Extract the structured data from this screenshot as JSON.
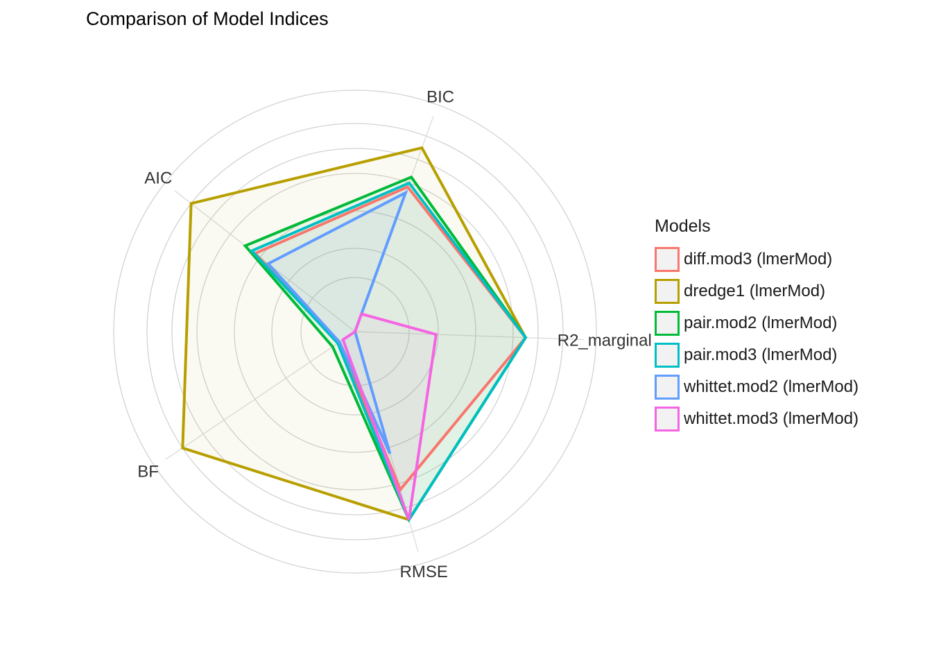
{
  "chart_data": {
    "type": "radar",
    "title": "Comparison of Model Indices",
    "axes": [
      "AIC",
      "BIC",
      "R2_marginal",
      "RMSE",
      "BF"
    ],
    "legend_title": "Models",
    "legend_position": "right",
    "grid": true,
    "rlim": [
      0,
      1
    ],
    "series": [
      {
        "name": "diff.mod3 (lmerMod)",
        "color": "#F8766D",
        "values": [
          0.61,
          0.74,
          0.82,
          0.79,
          0.09
        ]
      },
      {
        "name": "dredge1 (lmerMod)",
        "color": "#B79F00",
        "values": [
          1.0,
          0.94,
          0.82,
          0.94,
          1.0
        ]
      },
      {
        "name": "pair.mod2 (lmerMod)",
        "color": "#00BA38",
        "values": [
          0.67,
          0.79,
          0.82,
          0.94,
          0.13
        ]
      },
      {
        "name": "pair.mod3 (lmerMod)",
        "color": "#00BFC4",
        "values": [
          0.63,
          0.76,
          0.82,
          0.94,
          0.1
        ]
      },
      {
        "name": "whittet.mod2 (lmerMod)",
        "color": "#619CFF",
        "values": [
          0.53,
          0.71,
          0.0,
          0.61,
          0.09
        ]
      },
      {
        "name": "whittet.mod3 (lmerMod)",
        "color": "#F564E3",
        "values": [
          0.0,
          0.09,
          0.39,
          0.94,
          0.07
        ]
      }
    ]
  }
}
